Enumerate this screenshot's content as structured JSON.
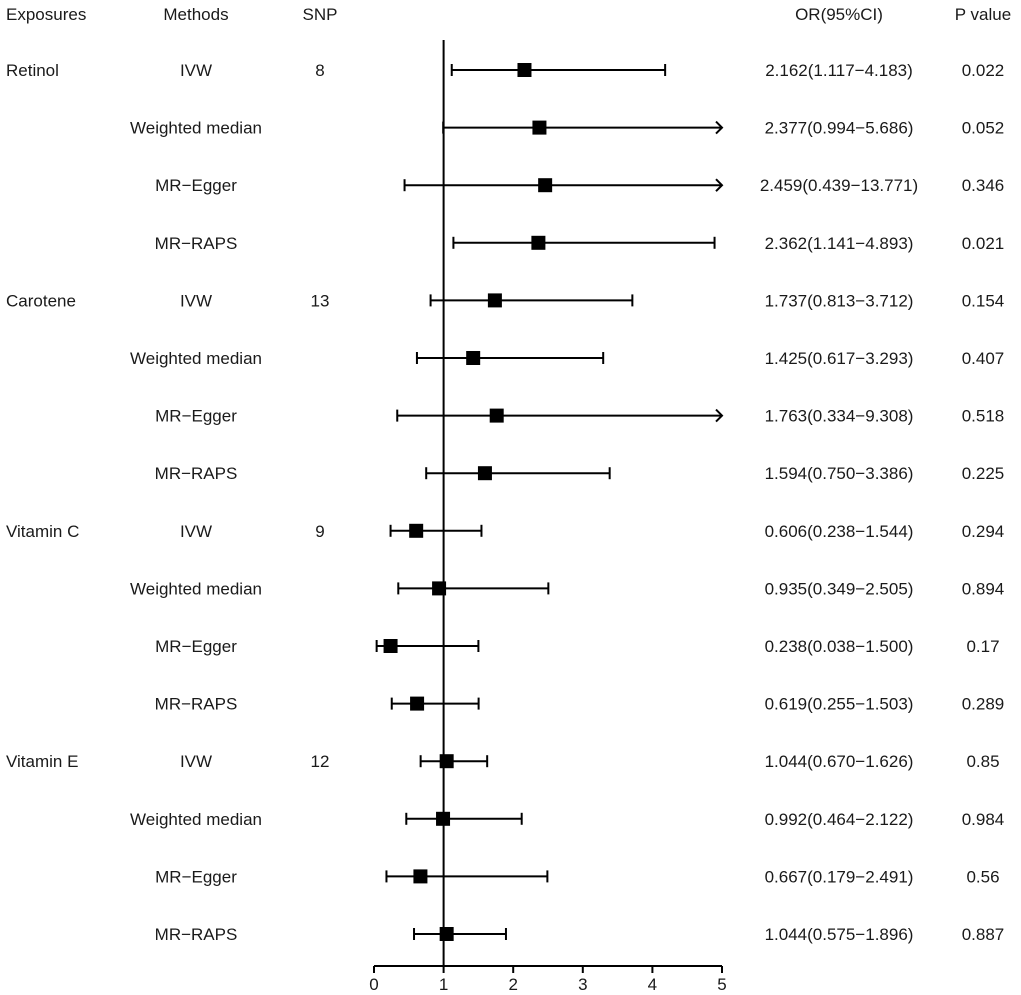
{
  "chart_data": {
    "type": "forest",
    "headers": {
      "exposures": "Exposures",
      "methods": "Methods",
      "snp": "SNP",
      "or_ci": "OR(95%CI)",
      "p_value": "P value"
    },
    "x_axis": {
      "min": 0,
      "max": 5,
      "ticks": [
        "0",
        "1",
        "2",
        "3",
        "4",
        "5"
      ],
      "reference_line": 1
    },
    "rows": [
      {
        "exposure": "Retinol",
        "method": "IVW",
        "snp": "8",
        "or": 2.162,
        "lower": 1.117,
        "upper": 4.183,
        "or_ci": "2.162(1.117−4.183)",
        "p": "0.022"
      },
      {
        "exposure": "",
        "method": "Weighted median",
        "snp": "",
        "or": 2.377,
        "lower": 0.994,
        "upper": 5.686,
        "or_ci": "2.377(0.994−5.686)",
        "p": "0.052"
      },
      {
        "exposure": "",
        "method": "MR−Egger",
        "snp": "",
        "or": 2.459,
        "lower": 0.439,
        "upper": 13.771,
        "or_ci": "2.459(0.439−13.771)",
        "p": "0.346"
      },
      {
        "exposure": "",
        "method": "MR−RAPS",
        "snp": "",
        "or": 2.362,
        "lower": 1.141,
        "upper": 4.893,
        "or_ci": "2.362(1.141−4.893)",
        "p": "0.021"
      },
      {
        "exposure": "Carotene",
        "method": "IVW",
        "snp": "13",
        "or": 1.737,
        "lower": 0.813,
        "upper": 3.712,
        "or_ci": "1.737(0.813−3.712)",
        "p": "0.154"
      },
      {
        "exposure": "",
        "method": "Weighted median",
        "snp": "",
        "or": 1.425,
        "lower": 0.617,
        "upper": 3.293,
        "or_ci": "1.425(0.617−3.293)",
        "p": "0.407"
      },
      {
        "exposure": "",
        "method": "MR−Egger",
        "snp": "",
        "or": 1.763,
        "lower": 0.334,
        "upper": 9.308,
        "or_ci": "1.763(0.334−9.308)",
        "p": "0.518"
      },
      {
        "exposure": "",
        "method": "MR−RAPS",
        "snp": "",
        "or": 1.594,
        "lower": 0.75,
        "upper": 3.386,
        "or_ci": "1.594(0.750−3.386)",
        "p": "0.225"
      },
      {
        "exposure": "Vitamin C",
        "method": "IVW",
        "snp": "9",
        "or": 0.606,
        "lower": 0.238,
        "upper": 1.544,
        "or_ci": "0.606(0.238−1.544)",
        "p": "0.294"
      },
      {
        "exposure": "",
        "method": "Weighted median",
        "snp": "",
        "or": 0.935,
        "lower": 0.349,
        "upper": 2.505,
        "or_ci": "0.935(0.349−2.505)",
        "p": "0.894"
      },
      {
        "exposure": "",
        "method": "MR−Egger",
        "snp": "",
        "or": 0.238,
        "lower": 0.038,
        "upper": 1.5,
        "or_ci": "0.238(0.038−1.500)",
        "p": "0.17"
      },
      {
        "exposure": "",
        "method": "MR−RAPS",
        "snp": "",
        "or": 0.619,
        "lower": 0.255,
        "upper": 1.503,
        "or_ci": "0.619(0.255−1.503)",
        "p": "0.289"
      },
      {
        "exposure": "Vitamin E",
        "method": "IVW",
        "snp": "12",
        "or": 1.044,
        "lower": 0.67,
        "upper": 1.626,
        "or_ci": "1.044(0.670−1.626)",
        "p": "0.85"
      },
      {
        "exposure": "",
        "method": "Weighted median",
        "snp": "",
        "or": 0.992,
        "lower": 0.464,
        "upper": 2.122,
        "or_ci": "0.992(0.464−2.122)",
        "p": "0.984"
      },
      {
        "exposure": "",
        "method": "MR−Egger",
        "snp": "",
        "or": 0.667,
        "lower": 0.179,
        "upper": 2.491,
        "or_ci": "0.667(0.179−2.491)",
        "p": "0.56"
      },
      {
        "exposure": "",
        "method": "MR−RAPS",
        "snp": "",
        "or": 1.044,
        "lower": 0.575,
        "upper": 1.896,
        "or_ci": "1.044(0.575−1.896)",
        "p": "0.887"
      }
    ]
  }
}
